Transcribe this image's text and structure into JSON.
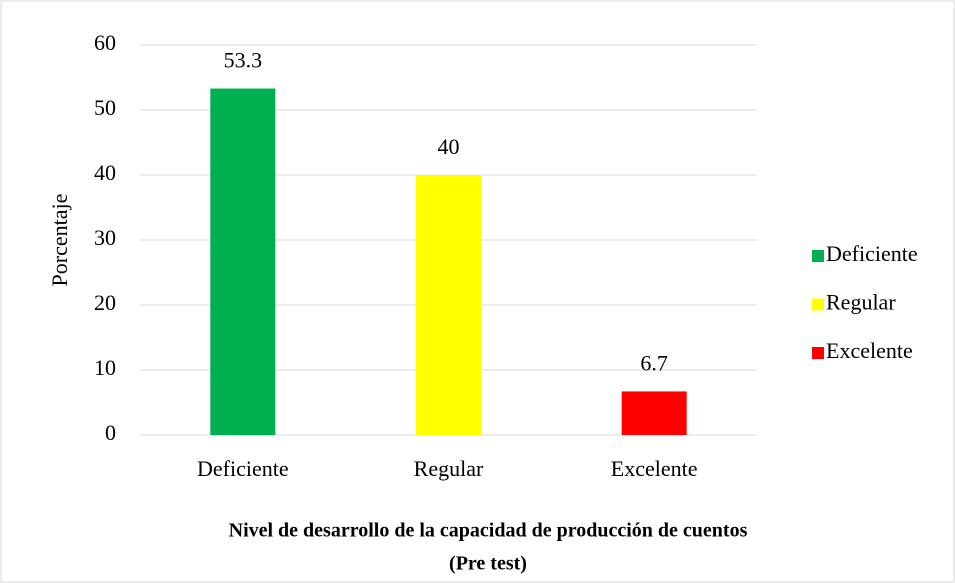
{
  "chart_data": {
    "type": "bar",
    "categories": [
      "Deficiente",
      "Regular",
      "Excelente"
    ],
    "values": [
      53.3,
      40,
      6.7
    ],
    "colors": [
      "#00b050",
      "#ffff00",
      "#ff0000"
    ],
    "ylim": [
      0,
      60
    ],
    "yticks": [
      0,
      10,
      20,
      30,
      40,
      50,
      60
    ],
    "ylabel": "Porcentaje",
    "xlabel": [
      "Nivel de desarrollo de la capacidad de producción de cuentos",
      "(Pre test)"
    ],
    "grid": true,
    "legend": "right"
  }
}
